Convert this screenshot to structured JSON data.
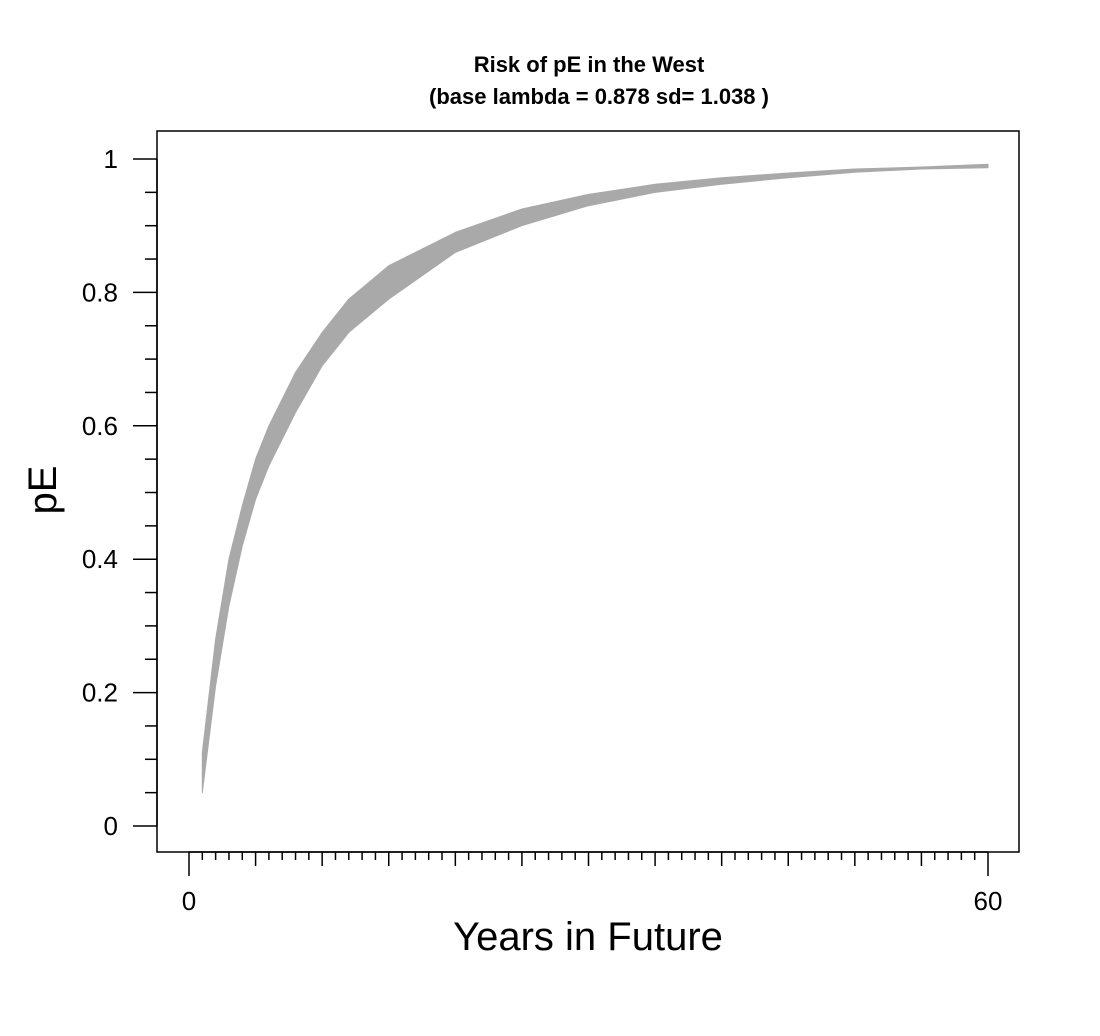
{
  "chart_data": {
    "type": "area",
    "title": "Risk of pE in the West",
    "subtitle": "(base lambda =  0.878 sd= 1.038 )",
    "xlabel": "Years in Future",
    "ylabel": "pE",
    "xlim": [
      0,
      60
    ],
    "ylim": [
      0,
      1
    ],
    "x_ticks": [
      0,
      60
    ],
    "x_tick_labels": [
      "0",
      "60"
    ],
    "x_minor_step": 1,
    "y_ticks": [
      0,
      0.2,
      0.4,
      0.6,
      0.8,
      1
    ],
    "y_tick_labels": [
      "0",
      "0.2",
      "0.4",
      "0.6",
      "0.8",
      "1"
    ],
    "y_minor_step": 0.05,
    "grid": false,
    "legend": "none",
    "band_color": "#a9a9a9",
    "series": [
      {
        "x": [
          1,
          2,
          3,
          4,
          5,
          6,
          8,
          10,
          12,
          15,
          20,
          25,
          30,
          35,
          40,
          45,
          50,
          55,
          60
        ],
        "lower": [
          0.05,
          0.21,
          0.33,
          0.42,
          0.49,
          0.54,
          0.62,
          0.69,
          0.74,
          0.79,
          0.86,
          0.9,
          0.93,
          0.95,
          0.962,
          0.972,
          0.98,
          0.985,
          0.987
        ],
        "upper": [
          0.11,
          0.28,
          0.4,
          0.48,
          0.55,
          0.6,
          0.68,
          0.74,
          0.79,
          0.84,
          0.89,
          0.925,
          0.947,
          0.962,
          0.972,
          0.979,
          0.985,
          0.988,
          0.992
        ]
      }
    ]
  }
}
